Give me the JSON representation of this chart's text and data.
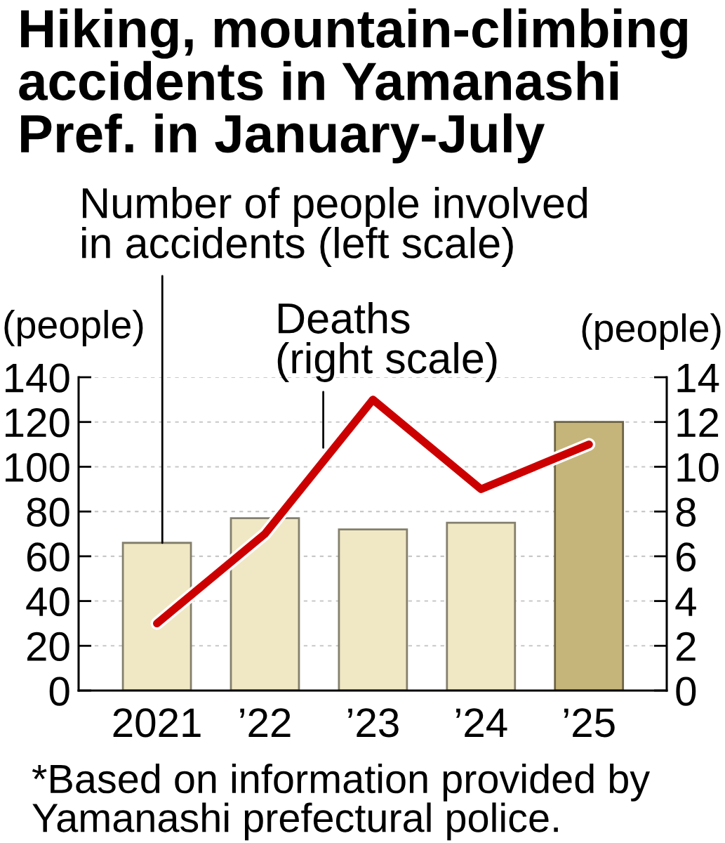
{
  "chart_data": {
    "type": "bar",
    "title": "Hiking, mountain-climbing\naccidents in Yamanashi\nPref. in January-July",
    "categories": [
      "2021",
      "’22",
      "’23",
      "’24",
      "’25"
    ],
    "series": [
      {
        "name": "Number of people involved\nin accidents (left scale)",
        "colors": [
          "#f0e7c4",
          "#f0e7c4",
          "#f0e7c4",
          "#f0e7c4",
          "#c6b57b"
        ],
        "values": [
          66,
          77,
          72,
          75,
          120
        ]
      },
      {
        "name": "Deaths\n(right scale)",
        "type": "line",
        "axis": "y2",
        "color": "#cc0000",
        "values": [
          3,
          7,
          13,
          9,
          11
        ]
      }
    ],
    "ylabel": "(people)",
    "y2label": "(people)",
    "ylim": [
      0,
      140
    ],
    "yticks": [
      0,
      20,
      40,
      60,
      80,
      100,
      120,
      140
    ],
    "y2lim": [
      0,
      14
    ],
    "y2ticks": [
      0,
      2,
      4,
      6,
      8,
      10,
      12,
      14
    ],
    "grid": "y",
    "line_style": "solid",
    "annotations": [
      "*Based on information provided by\nYamanashi prefectural police."
    ]
  }
}
